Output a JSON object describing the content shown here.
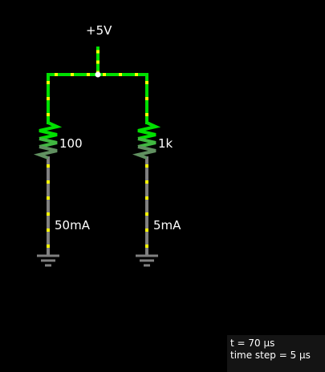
{
  "circuit": {
    "supply_label": "+5V",
    "left_branch": {
      "resistor_label": "100",
      "current_label": "50mA"
    },
    "right_branch": {
      "resistor_label": "1k",
      "current_label": "5mA"
    }
  },
  "info": {
    "time": "t = 70 µs",
    "time_step": "time step = 5 µs"
  },
  "colors": {
    "background": "#000000",
    "live_wire": "#00e000",
    "ground_wire": "#808080",
    "current_dots": "#ffff00",
    "node": "#ffffff",
    "info_panel": "#141414"
  }
}
